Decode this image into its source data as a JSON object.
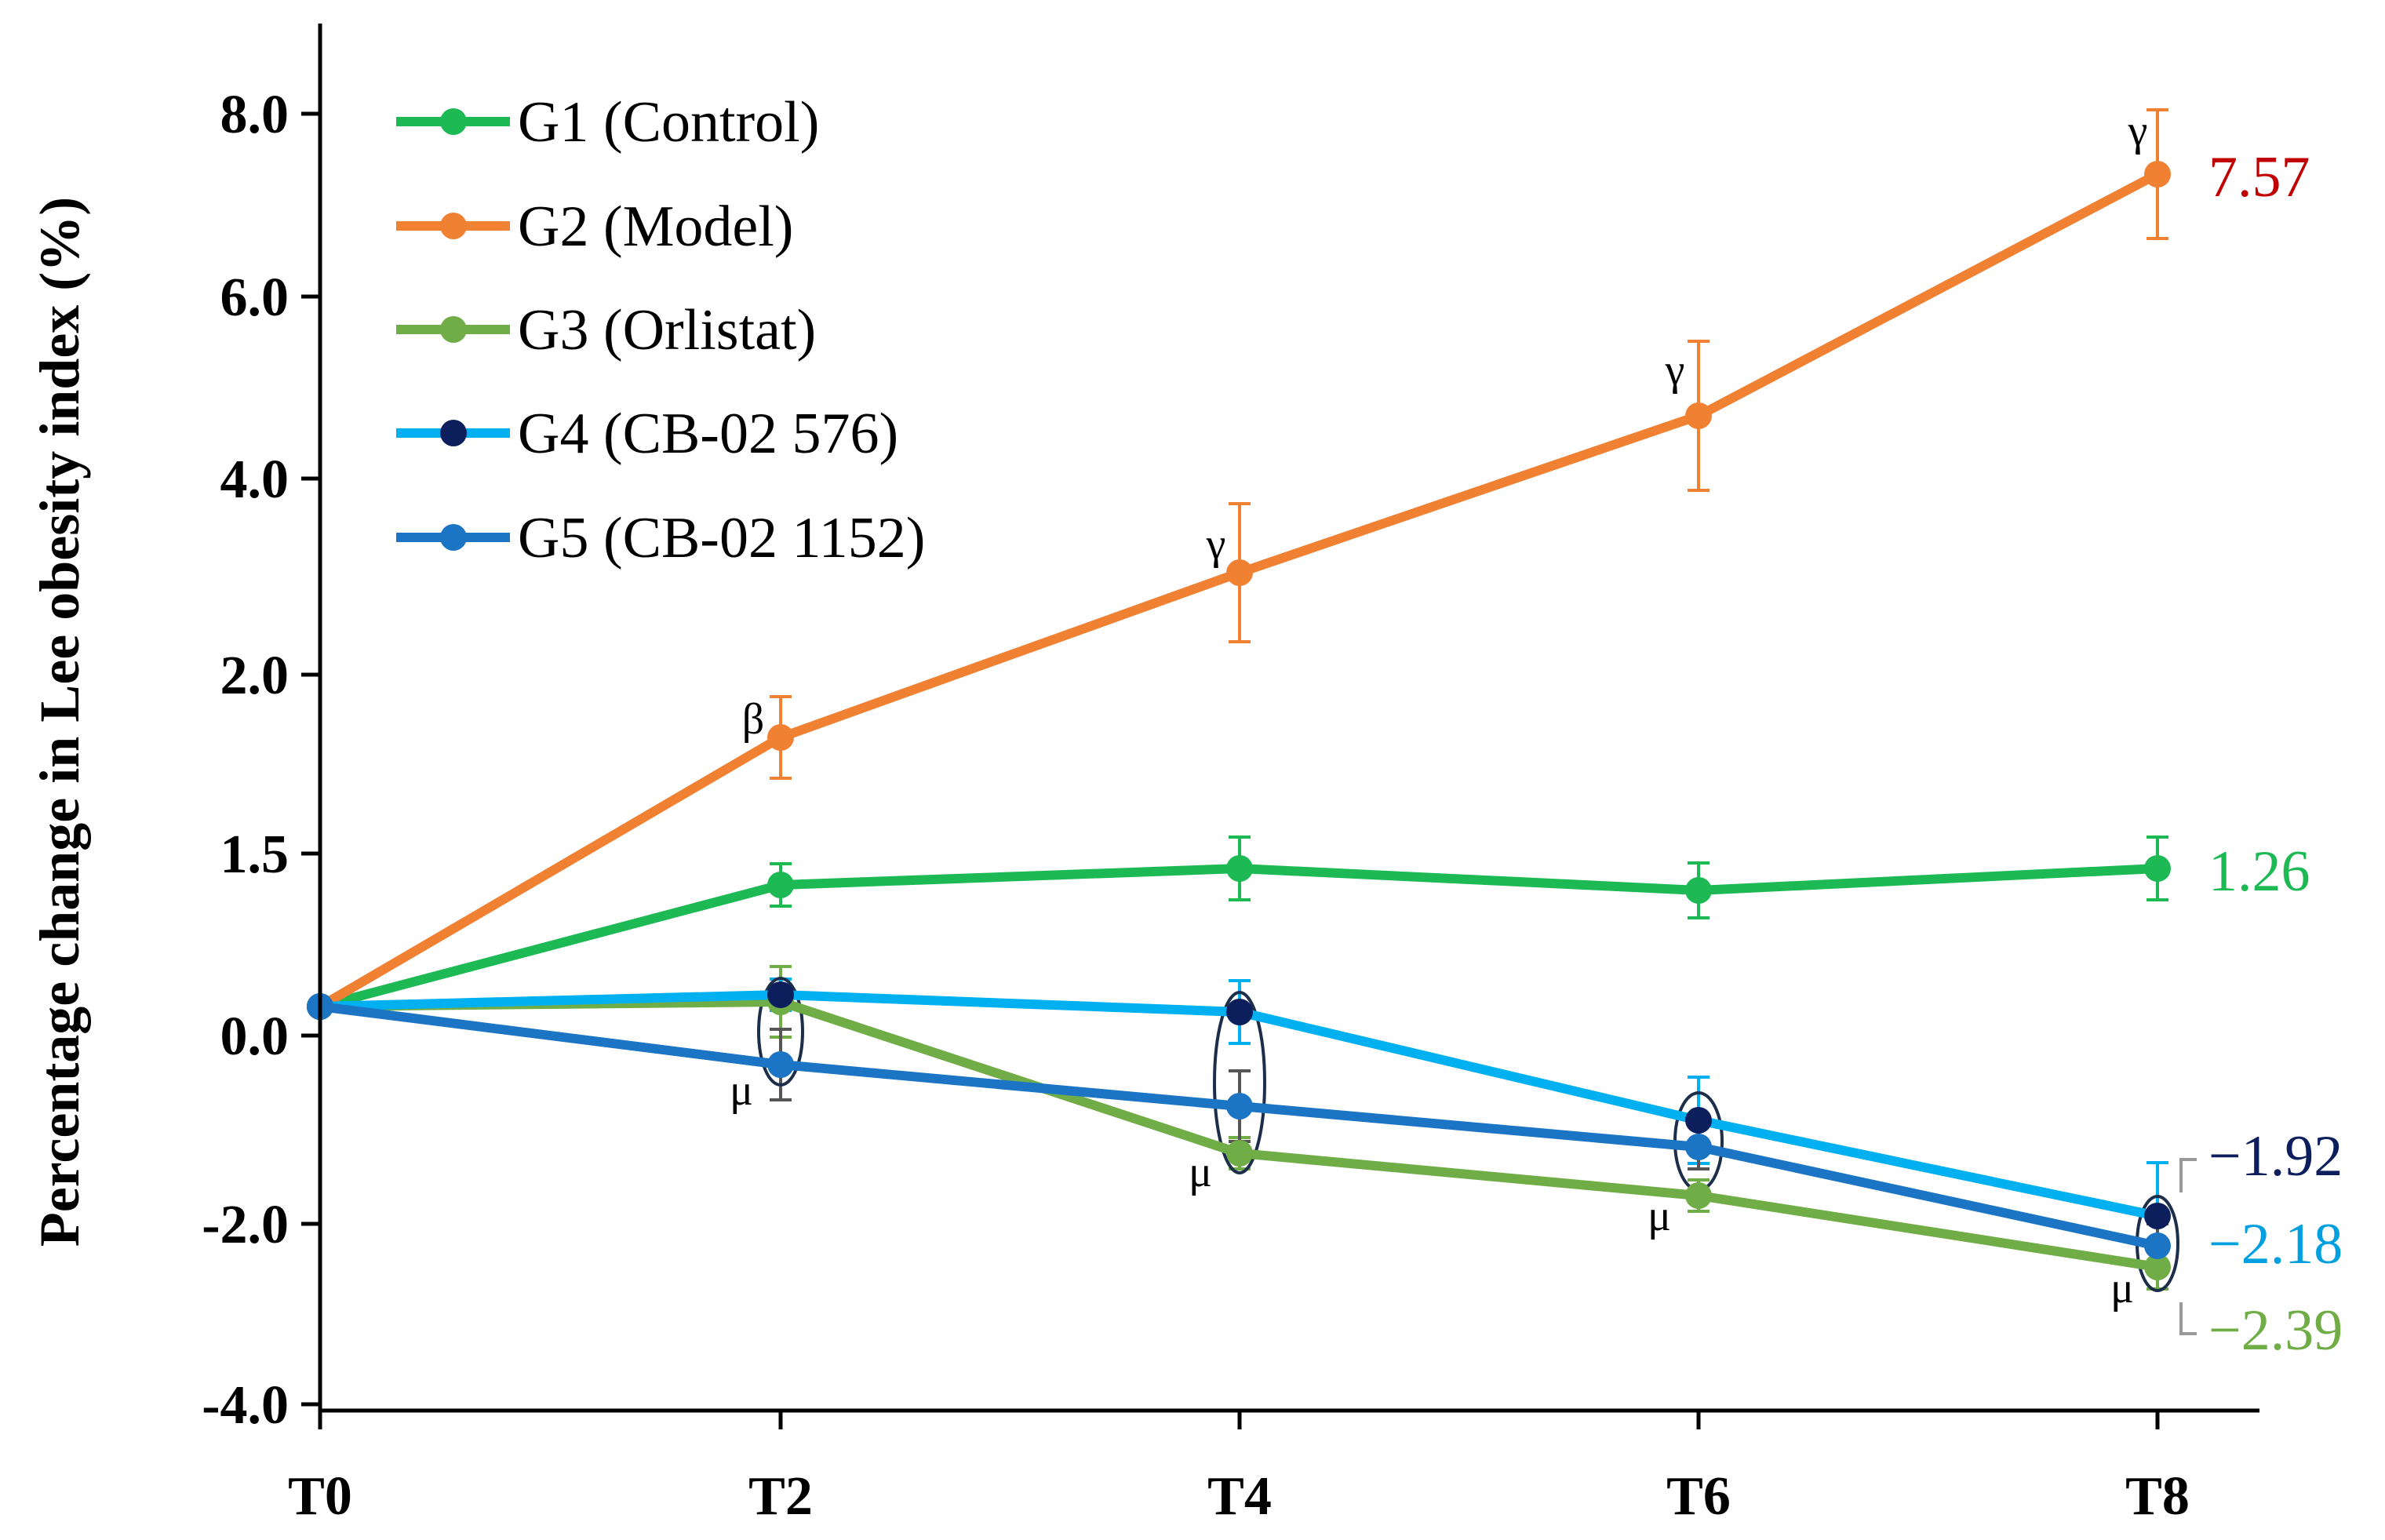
{
  "chart_data": {
    "type": "line",
    "ylabel": "Percentage change in Lee obesity index (%)",
    "xlabel": "",
    "categories": [
      "T0",
      "T2",
      "T4",
      "T6",
      "T8"
    ],
    "yticks": [
      "8.0",
      "6.0",
      "4.0",
      "2.0",
      "1.5",
      "0.0",
      "-2.0",
      "-4.0"
    ],
    "series": [
      {
        "name": "G1 (Control)",
        "color": "#1db954",
        "marker_color": "#1db954",
        "values": [
          0,
          1.0,
          1.1,
          0.98,
          1.26
        ],
        "errors": [
          0,
          0.12,
          0.17,
          0.15,
          0.17
        ]
      },
      {
        "name": "G2 (Model)",
        "color": "#f08133",
        "marker_color": "#f08133",
        "values": [
          0,
          2.1,
          3.3,
          4.7,
          7.57
        ],
        "errors": [
          0,
          0.3,
          0.55,
          0.6,
          0.6
        ]
      },
      {
        "name": "G3 (Orlistat)",
        "color": "#70ad47",
        "marker_color": "#70ad47",
        "values": [
          0,
          0,
          -1.55,
          -2.0,
          -2.39
        ],
        "errors": [
          0,
          0.25,
          0.1,
          0.1,
          0.12
        ]
      },
      {
        "name": "G4 (CB-02 576)",
        "color": "#00b0f0",
        "marker_color": "#0c1f5c",
        "values": [
          0,
          0.05,
          -0.06,
          -0.92,
          -1.92
        ],
        "errors": [
          0,
          0.1,
          0.1,
          0.15,
          0.3
        ]
      },
      {
        "name": "G5 (CB-02 1152)",
        "color": "#1b75c4",
        "marker_color": "#1b75c4",
        "values": [
          0,
          -0.52,
          -1.1,
          -1.55,
          -2.18
        ],
        "errors": [
          0,
          0.2,
          0.2,
          0.12,
          0.12
        ]
      }
    ],
    "annotations": [
      {
        "text": "β",
        "x": "T2",
        "series": "G2 (Model)"
      },
      {
        "text": "γ",
        "x": "T4",
        "series": "G2 (Model)"
      },
      {
        "text": "γ",
        "x": "T6",
        "series": "G2 (Model)"
      },
      {
        "text": "γ",
        "x": "T8",
        "series": "G2 (Model)"
      },
      {
        "text": "μ",
        "x": "T2",
        "series": "G5 (CB-02 1152)"
      },
      {
        "text": "μ",
        "x": "T4",
        "series": "G3 (Orlistat)"
      },
      {
        "text": "μ",
        "x": "T6",
        "series": "G3 (Orlistat)"
      },
      {
        "text": "μ",
        "x": "T8",
        "series": "G3 (Orlistat)"
      }
    ],
    "end_labels": [
      {
        "text": "7.57",
        "color": "#c00000"
      },
      {
        "text": "1.26",
        "color": "#1db954"
      },
      {
        "text": "−1.92",
        "color": "#0c1f5c"
      },
      {
        "text": "−2.18",
        "color": "#00a0e0"
      },
      {
        "text": "−2.39",
        "color": "#70ad47"
      }
    ],
    "legend_position": "top-left"
  }
}
